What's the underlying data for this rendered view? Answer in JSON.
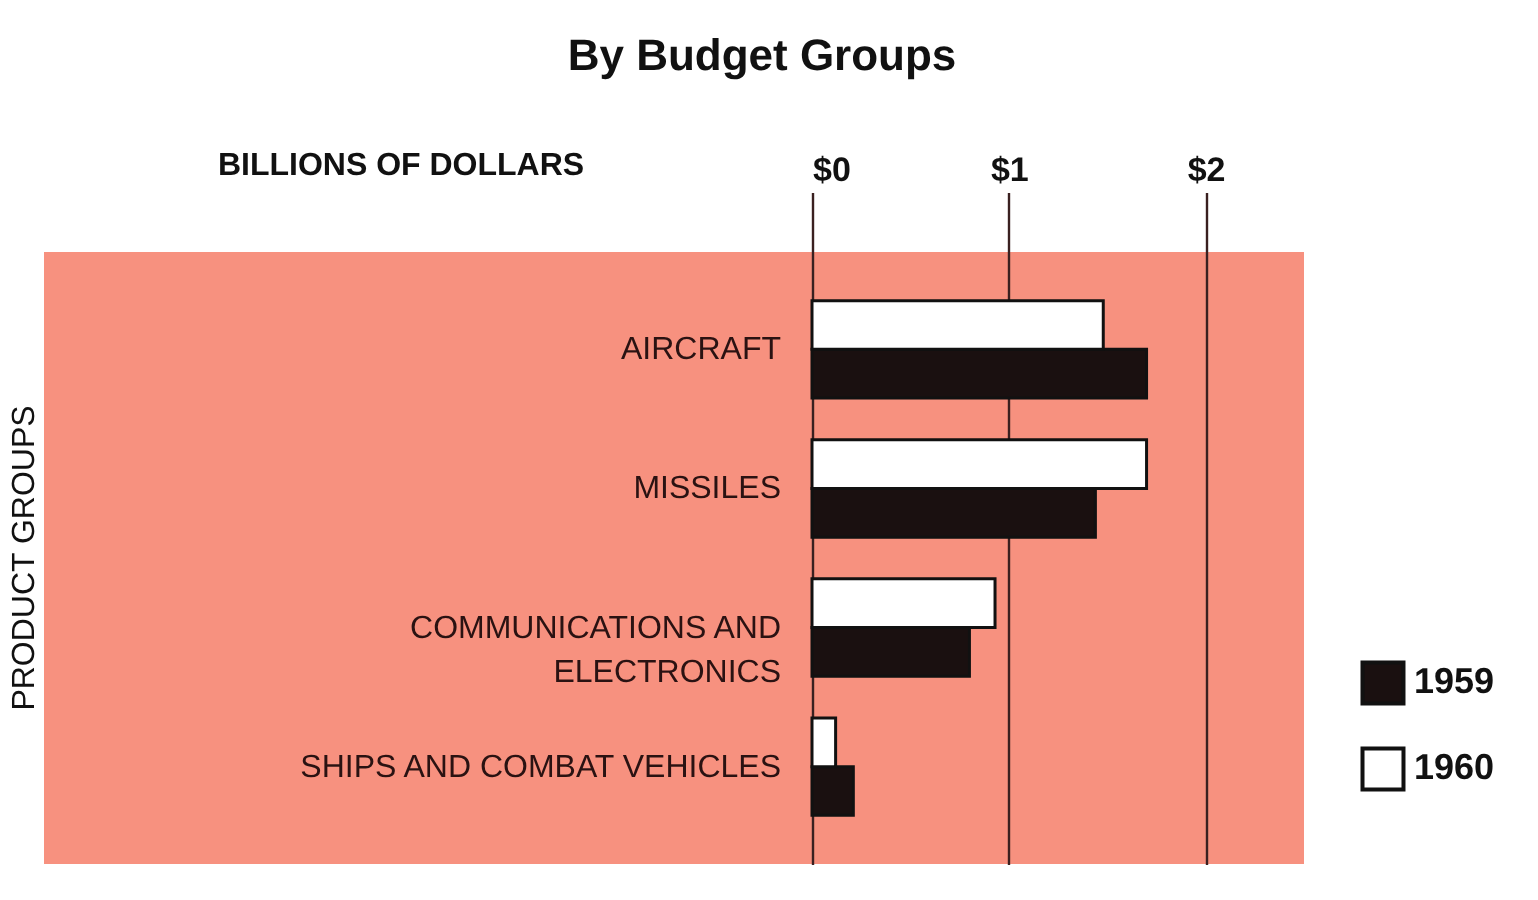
{
  "chart_data": {
    "type": "bar",
    "orientation": "horizontal",
    "title": "By Budget Groups",
    "xlabel": "BILLIONS OF DOLLARS",
    "annotations": [
      "PRODUCT GROUPS"
    ],
    "categories": [
      "AIRCRAFT",
      "MISSILES",
      "COMMUNICATIONS AND ELECTRONICS",
      "SHIPS AND COMBAT VEHICLES"
    ],
    "series": [
      {
        "name": "1959",
        "color": "#1a1010",
        "values": [
          1.7,
          1.44,
          0.8,
          0.21
        ]
      },
      {
        "name": "1960",
        "color": "#ffffff",
        "values": [
          1.48,
          1.7,
          0.93,
          0.12
        ]
      }
    ],
    "xlim": [
      0,
      2.5
    ],
    "xticks": [
      {
        "value": 0,
        "label": "$0"
      },
      {
        "value": 1,
        "label": "$1"
      },
      {
        "value": 2,
        "label": "$2"
      }
    ],
    "grid": "x",
    "legend": "bottom right"
  }
}
